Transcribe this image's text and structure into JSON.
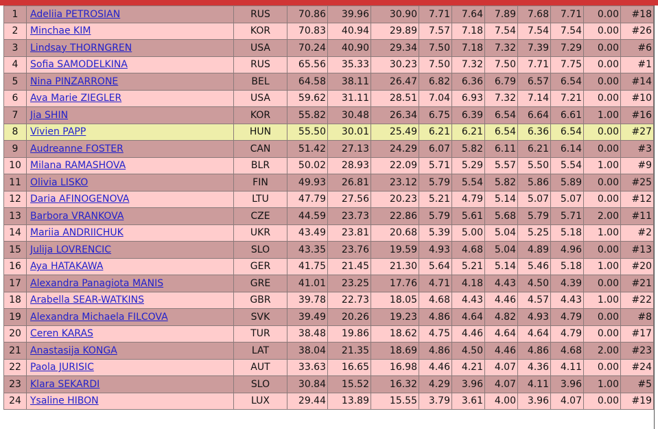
{
  "table": {
    "rows": [
      [
        "1",
        "Adeliia PETROSIAN",
        "RUS",
        "70.86",
        "39.96",
        "30.90",
        "7.71",
        "7.64",
        "7.89",
        "7.68",
        "7.71",
        "0.00",
        "#18"
      ],
      [
        "2",
        "Minchae KIM",
        "KOR",
        "70.83",
        "40.94",
        "29.89",
        "7.57",
        "7.18",
        "7.54",
        "7.54",
        "7.54",
        "0.00",
        "#26"
      ],
      [
        "3",
        "Lindsay THORNGREN",
        "USA",
        "70.24",
        "40.90",
        "29.34",
        "7.50",
        "7.18",
        "7.32",
        "7.39",
        "7.29",
        "0.00",
        "#6"
      ],
      [
        "4",
        "Sofia SAMODELKINA",
        "RUS",
        "65.56",
        "35.33",
        "30.23",
        "7.50",
        "7.32",
        "7.50",
        "7.71",
        "7.75",
        "0.00",
        "#1"
      ],
      [
        "5",
        "Nina PINZARRONE",
        "BEL",
        "64.58",
        "38.11",
        "26.47",
        "6.82",
        "6.36",
        "6.79",
        "6.57",
        "6.54",
        "0.00",
        "#14"
      ],
      [
        "6",
        "Ava Marie ZIEGLER",
        "USA",
        "59.62",
        "31.11",
        "28.51",
        "7.04",
        "6.93",
        "7.32",
        "7.14",
        "7.21",
        "0.00",
        "#10"
      ],
      [
        "7",
        "Jia SHIN",
        "KOR",
        "55.82",
        "30.48",
        "26.34",
        "6.75",
        "6.39",
        "6.54",
        "6.64",
        "6.61",
        "1.00",
        "#16"
      ],
      [
        "8",
        "Vivien PAPP",
        "HUN",
        "55.50",
        "30.01",
        "25.49",
        "6.21",
        "6.21",
        "6.54",
        "6.36",
        "6.54",
        "0.00",
        "#27"
      ],
      [
        "9",
        "Audreanne FOSTER",
        "CAN",
        "51.42",
        "27.13",
        "24.29",
        "6.07",
        "5.82",
        "6.11",
        "6.21",
        "6.14",
        "0.00",
        "#3"
      ],
      [
        "10",
        "Milana RAMASHOVA",
        "BLR",
        "50.02",
        "28.93",
        "22.09",
        "5.71",
        "5.29",
        "5.57",
        "5.50",
        "5.54",
        "1.00",
        "#9"
      ],
      [
        "11",
        "Olivia LISKO",
        "FIN",
        "49.93",
        "26.81",
        "23.12",
        "5.79",
        "5.54",
        "5.82",
        "5.86",
        "5.89",
        "0.00",
        "#25"
      ],
      [
        "12",
        "Daria AFINOGENOVA",
        "LTU",
        "47.79",
        "27.56",
        "20.23",
        "5.21",
        "4.79",
        "5.14",
        "5.07",
        "5.07",
        "0.00",
        "#12"
      ],
      [
        "13",
        "Barbora VRANKOVA",
        "CZE",
        "44.59",
        "23.73",
        "22.86",
        "5.79",
        "5.61",
        "5.68",
        "5.79",
        "5.71",
        "2.00",
        "#11"
      ],
      [
        "14",
        "Mariia ANDRIICHUK",
        "UKR",
        "43.49",
        "23.81",
        "20.68",
        "5.39",
        "5.00",
        "5.04",
        "5.25",
        "5.18",
        "1.00",
        "#2"
      ],
      [
        "15",
        "Julija LOVRENCIC",
        "SLO",
        "43.35",
        "23.76",
        "19.59",
        "4.93",
        "4.68",
        "5.04",
        "4.89",
        "4.96",
        "0.00",
        "#13"
      ],
      [
        "16",
        "Aya HATAKAWA",
        "GER",
        "41.75",
        "21.45",
        "21.30",
        "5.64",
        "5.21",
        "5.14",
        "5.46",
        "5.18",
        "1.00",
        "#20"
      ],
      [
        "17",
        "Alexandra Panagiota MANIS",
        "GRE",
        "41.01",
        "23.25",
        "17.76",
        "4.71",
        "4.18",
        "4.43",
        "4.50",
        "4.39",
        "0.00",
        "#21"
      ],
      [
        "18",
        "Arabella SEAR-WATKINS",
        "GBR",
        "39.78",
        "22.73",
        "18.05",
        "4.68",
        "4.43",
        "4.46",
        "4.57",
        "4.43",
        "1.00",
        "#22"
      ],
      [
        "19",
        "Alexandra Michaela FILCOVA",
        "SVK",
        "39.49",
        "20.26",
        "19.23",
        "4.86",
        "4.64",
        "4.82",
        "4.93",
        "4.79",
        "0.00",
        "#8"
      ],
      [
        "20",
        "Ceren KARAS",
        "TUR",
        "38.48",
        "19.86",
        "18.62",
        "4.75",
        "4.46",
        "4.64",
        "4.64",
        "4.79",
        "0.00",
        "#17"
      ],
      [
        "21",
        "Anastasija KONGA",
        "LAT",
        "38.04",
        "21.35",
        "18.69",
        "4.86",
        "4.50",
        "4.46",
        "4.86",
        "4.68",
        "2.00",
        "#23"
      ],
      [
        "22",
        "Paola JURISIC",
        "AUT",
        "33.63",
        "16.65",
        "16.98",
        "4.46",
        "4.21",
        "4.07",
        "4.36",
        "4.11",
        "0.00",
        "#24"
      ],
      [
        "23",
        "Klara SEKARDI",
        "SLO",
        "30.84",
        "15.52",
        "16.32",
        "4.29",
        "3.96",
        "4.07",
        "4.11",
        "3.96",
        "1.00",
        "#5"
      ],
      [
        "24",
        "Ysaline HIBON",
        "LUX",
        "29.44",
        "13.89",
        "15.55",
        "3.79",
        "3.61",
        "4.00",
        "3.96",
        "4.07",
        "0.00",
        "#19"
      ]
    ]
  }
}
